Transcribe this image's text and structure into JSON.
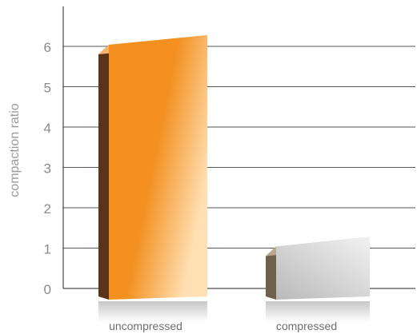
{
  "chart_data": {
    "type": "bar",
    "title": "",
    "xlabel": "",
    "ylabel": "compaction ratio",
    "categories": [
      "uncompressed",
      "compressed"
    ],
    "values": [
      6,
      1
    ],
    "ylim": [
      0,
      7
    ],
    "yticks": [
      0,
      1,
      2,
      3,
      4,
      5,
      6
    ],
    "grid": true,
    "legend": "none",
    "colors": {
      "uncompressed_front": "#f39020",
      "uncompressed_highlight": "#ffe0b4",
      "uncompressed_side": "#5a3418",
      "uncompressed_top": "#f7b66a",
      "compressed_front": "#c9c9c9",
      "compressed_highlight": "#f2f2f2",
      "compressed_side": "#6f604e",
      "compressed_top": "#b8a892",
      "gridline": "#555555",
      "axis": "#222222"
    }
  }
}
